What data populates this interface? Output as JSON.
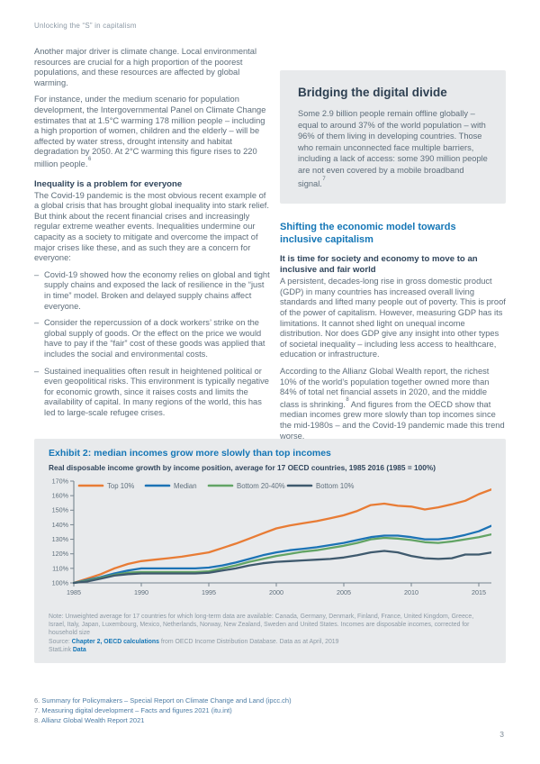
{
  "page": {
    "header": "Unlocking the “S” in capitalism",
    "page_number": "3",
    "accent_blue": "#1476B6",
    "heading_dark": "#31465C",
    "body_gray": "#5D6D7A",
    "panel_bg": "#E8EAEC"
  },
  "left_column": {
    "para1": "Another major driver is climate change. Local environmental resources are crucial for a high proportion of the poorest populations, and these resources are affected by global warming.",
    "para2": "For instance, under the medium scenario for population development, the Intergovernmental Panel on Climate Change estimates that at 1.5°C warming 178 million people – including a high proportion of women, children and the elderly – will be affected by water stress, drought intensity and habitat degradation by 2050. At 2°C warming this figure rises to 220 million people.",
    "para2_footnote": "6",
    "heading": "Inequality is a problem for everyone",
    "intro": "The Covid-19 pandemic is the most obvious recent example of a global crisis that has brought global inequality into stark relief. But think about the recent financial crises and increasingly regular extreme weather events. Inequalities undermine our capacity as a society to mitigate and overcome the impact of major crises like these, and as such they are a concern for everyone:",
    "bullet_dash": "–",
    "bullets": [
      "Covid-19 showed how the economy relies on global and tight supply chains and exposed the lack of resilience in the “just in time” model. Broken and delayed supply chains affect everyone.",
      "Consider the repercussion of a dock workers’ strike on the global supply of goods. Or the effect on the price we would have to pay if the “fair” cost of these goods was applied that includes the social and environmental costs.",
      "Sustained inequalities often result in heightened political or even geopolitical risks. This environment is typically negative for economic growth, since it raises costs and limits the availability of capital. In many regions of the world, this has led to large-scale refugee crises."
    ]
  },
  "digital_divide_box": {
    "title": "Bridging the digital divide",
    "body": "Some 2.9 billion people remain offline globally – equal to around 37% of the world population – with 96% of them living in developing countries. Those who remain unconnected face multiple barriers, including a lack of access: some 390 million people are not even covered by a mobile broadband signal.",
    "footnote": "7"
  },
  "section": {
    "heading": "Shifting the economic model towards inclusive capitalism",
    "subheading": "It is time for society and economy to move to an inclusive and fair world",
    "para1": "A persistent, decades-long rise in gross domestic product (GDP) in many countries has increased overall living standards and lifted many people out of poverty. This is proof of the power of capitalism. However, measuring GDP has its limitations. It cannot shed light on unequal income distribution. Nor does GDP give any insight into other types of societal inequality – including less access to healthcare, education or infrastructure.",
    "para2_part1": "According to the Allianz Global Wealth report, the richest 10% of the world’s population together owned more than 84% of total net financial assets in 2020, and the middle class is shrinking.",
    "para2_footnote": "8",
    "para2_part2": " And figures from the OECD show that median incomes grew more slowly than top incomes since the mid-1980s – and the Covid-19 pandemic made this trend worse."
  },
  "exhibit": {
    "title": "Exhibit 2: median incomes grow more slowly than top incomes",
    "subtitle": "Real disposable income growth by income position, average for 17 OECD countries, 1985 2016 (1985 = 100%)",
    "note": "Note: Unweighted average for 17 countries for which long-term data are available: Canada, Germany, Denmark, Finland, France, United Kingdom, Greece, Israel, Italy, Japan, Luxembourg, Mexico, Netherlands, Norway, New Zealand, Sweden and United States. Incomes are disposable incomes, corrected for household size",
    "source_prefix": "Source: ",
    "source_link": "Chapter 2, OECD calculations",
    "source_suffix": " from OECD Income Distribution Database. Data as at April, 2019",
    "statlink_label": "StatLink ",
    "statlink_link": "Data"
  },
  "chart_data": {
    "type": "line",
    "title": "Exhibit 2: median incomes grow more slowly than top incomes",
    "subtitle": "Real disposable income growth by income position, average for 17 OECD countries, 1985 2016 (1985 = 100%)",
    "grid": false,
    "legend_position": "top-left",
    "ylim": [
      100,
      170
    ],
    "y_ticks": [
      100,
      110,
      120,
      130,
      140,
      150,
      160,
      170
    ],
    "y_tick_suffix": "%",
    "x_ticks": [
      1985,
      1990,
      1995,
      2000,
      2005,
      2010,
      2015
    ],
    "x": [
      1985,
      1986,
      1987,
      1988,
      1989,
      1990,
      1991,
      1992,
      1993,
      1994,
      1995,
      1996,
      1997,
      1998,
      1999,
      2000,
      2001,
      2002,
      2003,
      2004,
      2005,
      2006,
      2007,
      2008,
      2009,
      2010,
      2011,
      2012,
      2013,
      2014,
      2015,
      2016
    ],
    "series": [
      {
        "name": "Top 10%",
        "color": "#E87C35",
        "values": [
          100,
          103,
          106,
          110,
          113,
          115,
          116,
          117,
          118,
          119.5,
          121,
          124,
          127,
          130.5,
          134,
          137.5,
          139.5,
          141,
          142.5,
          144.5,
          146.5,
          149.5,
          153.5,
          154.5,
          153,
          152.5,
          150.5,
          152,
          154,
          156.5,
          161,
          164.5
        ]
      },
      {
        "name": "Median",
        "color": "#1C73B5",
        "values": [
          100,
          102,
          104,
          106.5,
          108.5,
          110,
          110,
          110,
          110,
          110,
          110.5,
          112,
          114,
          116.5,
          119,
          121,
          122.5,
          123.5,
          124.5,
          126,
          127.5,
          129.5,
          131.5,
          132.5,
          132.5,
          131.5,
          130,
          130,
          131,
          133,
          135.5,
          139.5
        ]
      },
      {
        "name": "Bottom 20-40%",
        "color": "#62A465",
        "values": [
          100,
          101.5,
          103.5,
          105.5,
          107,
          107.5,
          107.5,
          107.5,
          107.5,
          107.5,
          108,
          110,
          112,
          114.5,
          116.5,
          118.5,
          120,
          121.5,
          122.5,
          124,
          125.5,
          127.5,
          130,
          131,
          130.5,
          129.5,
          128,
          127.5,
          128.5,
          130,
          131.5,
          133.5
        ]
      },
      {
        "name": "Bottom 10%",
        "color": "#3F5A6E",
        "values": [
          100,
          101,
          103,
          105,
          106,
          106.5,
          106.5,
          106.5,
          106.5,
          106.5,
          107,
          108.5,
          110,
          112,
          113.5,
          114.5,
          115,
          115.5,
          116,
          116.5,
          117.5,
          119,
          121,
          122,
          121,
          118.5,
          117,
          116.5,
          117,
          119.5,
          119.5,
          121
        ]
      }
    ]
  },
  "footnotes": [
    {
      "num": "6.",
      "text": "Summary for Policymakers – Special Report on Climate Change and Land (ipcc.ch)"
    },
    {
      "num": "7.",
      "text": "Measuring digital development – Facts and figures 2021 (itu.int)"
    },
    {
      "num": "8.",
      "text": "Allianz Global Wealth Report 2021"
    }
  ]
}
